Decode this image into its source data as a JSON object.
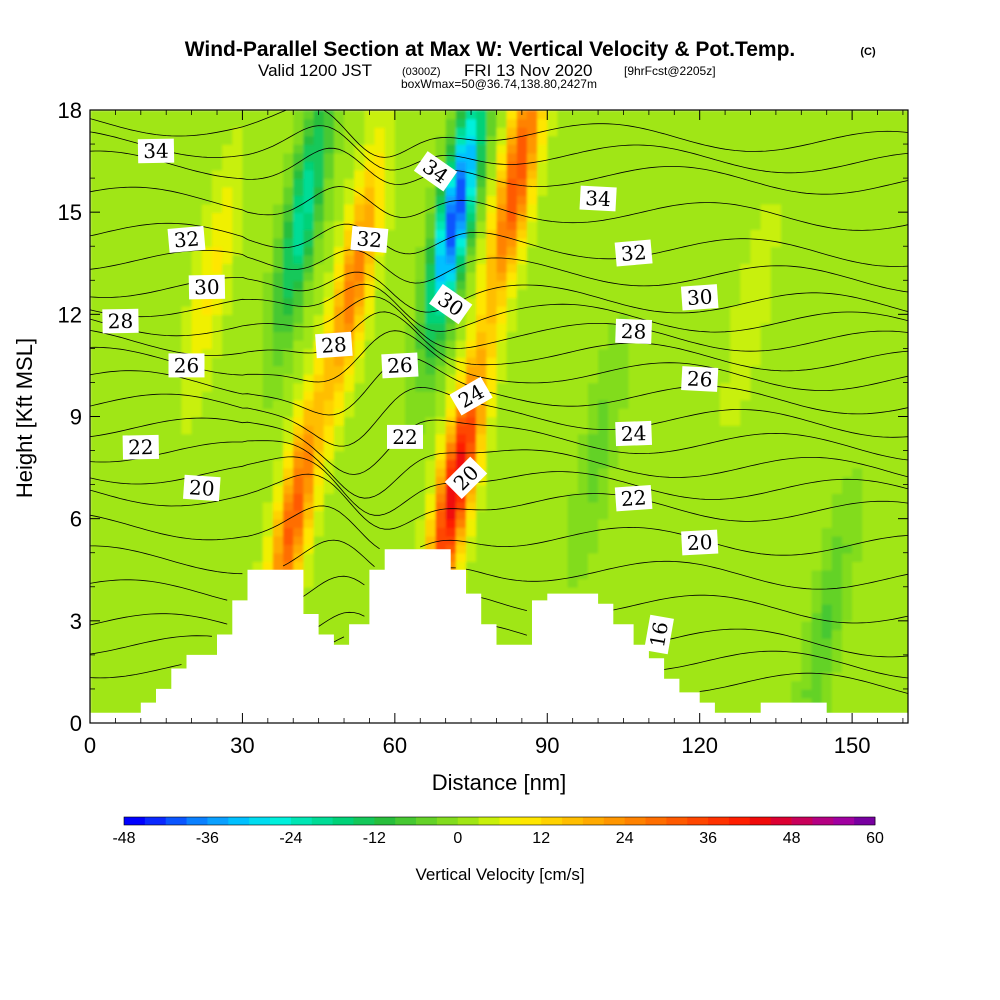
{
  "header": {
    "title": "Wind-Parallel Section at Max W: Vertical Velocity & Pot.Temp.",
    "copyright": "(C)",
    "valid_prefix": "Valid 1200 JST",
    "valid_utc": "(0300Z)",
    "valid_date": "FRI 13 Nov 2020",
    "forecast": "[9hrFcst@2205z]",
    "box": "boxWmax=50@36.74,138.80,2427m"
  },
  "chart_data": {
    "type": "heatmap",
    "title": "Wind-Parallel Section at Max W: Vertical Velocity & Pot.Temp.",
    "xlabel": "Distance [nm]",
    "ylabel": "Height [Kft MSL]",
    "xlim": [
      0,
      161
    ],
    "ylim": [
      0,
      18
    ],
    "xticks": [
      0,
      30,
      60,
      90,
      120,
      150
    ],
    "yticks": [
      0,
      3,
      6,
      9,
      12,
      15,
      18
    ],
    "colorbar": {
      "label": "Vertical Velocity [cm/s]",
      "ticks": [
        -48,
        -36,
        -24,
        -12,
        0,
        12,
        24,
        36,
        48,
        60
      ],
      "levels": [
        -48,
        -45,
        -42,
        -39,
        -36,
        -33,
        -30,
        -27,
        -24,
        -21,
        -18,
        -15,
        -12,
        -9,
        -6,
        -3,
        0,
        3,
        6,
        9,
        12,
        15,
        18,
        21,
        24,
        27,
        30,
        33,
        36,
        39,
        42,
        45,
        48,
        51,
        54,
        57,
        60
      ],
      "colors": [
        "#0000ff",
        "#0a28ff",
        "#0a55ff",
        "#0a80ff",
        "#0aa0ff",
        "#00c0ff",
        "#00dcf0",
        "#00f0dc",
        "#00e6b4",
        "#00dc96",
        "#00d278",
        "#14c85a",
        "#28be3c",
        "#46c832",
        "#64d228",
        "#82dc1e",
        "#a0e614",
        "#c8f00a",
        "#f0f000",
        "#ffe600",
        "#ffd200",
        "#ffbe00",
        "#ffaa00",
        "#ff9600",
        "#ff8200",
        "#ff6e00",
        "#ff5a00",
        "#ff4600",
        "#ff3200",
        "#ff1e00",
        "#f00a0a",
        "#dc0032",
        "#c8005a",
        "#b40082",
        "#a000a0",
        "#7800a0"
      ]
    },
    "velocity_features": [
      {
        "x": 24,
        "z": 13,
        "w": 8
      },
      {
        "x": 42,
        "z": 15,
        "w": -22
      },
      {
        "x": 52,
        "z": 13,
        "w": 25
      },
      {
        "x": 72,
        "z": 15,
        "w": -45
      },
      {
        "x": 72,
        "z": 7,
        "w": 45
      },
      {
        "x": 84,
        "z": 16,
        "w": 32
      },
      {
        "x": 40,
        "z": 6,
        "w": 30
      },
      {
        "x": 100,
        "z": 8,
        "w": -6
      },
      {
        "x": 130,
        "z": 12,
        "w": 4
      },
      {
        "x": 145,
        "z": 3,
        "w": -8
      }
    ],
    "theta_contour_labels": [
      {
        "value": 34,
        "x": 13,
        "z": 16.8
      },
      {
        "value": 34,
        "x": 68,
        "z": 16.2
      },
      {
        "value": 34,
        "x": 100,
        "z": 15.4
      },
      {
        "value": 32,
        "x": 19,
        "z": 14.2
      },
      {
        "value": 32,
        "x": 55,
        "z": 14.2
      },
      {
        "value": 32,
        "x": 107,
        "z": 13.8
      },
      {
        "value": 30,
        "x": 23,
        "z": 12.8
      },
      {
        "value": 30,
        "x": 71,
        "z": 12.3
      },
      {
        "value": 30,
        "x": 120,
        "z": 12.5
      },
      {
        "value": 28,
        "x": 6,
        "z": 11.8
      },
      {
        "value": 28,
        "x": 48,
        "z": 11.1
      },
      {
        "value": 28,
        "x": 107,
        "z": 11.5
      },
      {
        "value": 26,
        "x": 19,
        "z": 10.5
      },
      {
        "value": 26,
        "x": 61,
        "z": 10.5
      },
      {
        "value": 26,
        "x": 120,
        "z": 10.1
      },
      {
        "value": 24,
        "x": 75,
        "z": 9.6
      },
      {
        "value": 24,
        "x": 107,
        "z": 8.5
      },
      {
        "value": 22,
        "x": 10,
        "z": 8.1
      },
      {
        "value": 22,
        "x": 62,
        "z": 8.4
      },
      {
        "value": 22,
        "x": 107,
        "z": 6.6
      },
      {
        "value": 20,
        "x": 22,
        "z": 6.9
      },
      {
        "value": 20,
        "x": 74,
        "z": 7.2
      },
      {
        "value": 20,
        "x": 120,
        "z": 5.3
      },
      {
        "value": 16,
        "x": 112,
        "z": 2.6
      }
    ],
    "terrain": [
      [
        0,
        0.3
      ],
      [
        10,
        0.3
      ],
      [
        10,
        0.6
      ],
      [
        13,
        0.6
      ],
      [
        13,
        1.0
      ],
      [
        16,
        1.0
      ],
      [
        16,
        1.6
      ],
      [
        19,
        1.6
      ],
      [
        19,
        2.0
      ],
      [
        25,
        2.0
      ],
      [
        25,
        2.6
      ],
      [
        28,
        2.6
      ],
      [
        28,
        3.6
      ],
      [
        31,
        3.6
      ],
      [
        31,
        4.5
      ],
      [
        42,
        4.5
      ],
      [
        42,
        3.2
      ],
      [
        45,
        3.2
      ],
      [
        45,
        2.6
      ],
      [
        48,
        2.6
      ],
      [
        48,
        2.3
      ],
      [
        51,
        2.3
      ],
      [
        51,
        2.9
      ],
      [
        55,
        2.9
      ],
      [
        55,
        4.5
      ],
      [
        58,
        4.5
      ],
      [
        58,
        5.1
      ],
      [
        71,
        5.1
      ],
      [
        71,
        4.5
      ],
      [
        74,
        4.5
      ],
      [
        74,
        3.8
      ],
      [
        77,
        3.8
      ],
      [
        77,
        2.9
      ],
      [
        80,
        2.9
      ],
      [
        80,
        2.3
      ],
      [
        87,
        2.3
      ],
      [
        87,
        3.6
      ],
      [
        90,
        3.6
      ],
      [
        90,
        3.8
      ],
      [
        100,
        3.8
      ],
      [
        100,
        3.5
      ],
      [
        103,
        3.5
      ],
      [
        103,
        2.9
      ],
      [
        107,
        2.9
      ],
      [
        107,
        2.3
      ],
      [
        110,
        2.3
      ],
      [
        110,
        1.9
      ],
      [
        113,
        1.9
      ],
      [
        113,
        1.3
      ],
      [
        116,
        1.3
      ],
      [
        116,
        0.9
      ],
      [
        120,
        0.9
      ],
      [
        120,
        0.6
      ],
      [
        123,
        0.6
      ],
      [
        123,
        0.3
      ],
      [
        132,
        0.3
      ],
      [
        132,
        0.6
      ],
      [
        145,
        0.6
      ],
      [
        145,
        0.3
      ],
      [
        161,
        0.3
      ]
    ]
  }
}
